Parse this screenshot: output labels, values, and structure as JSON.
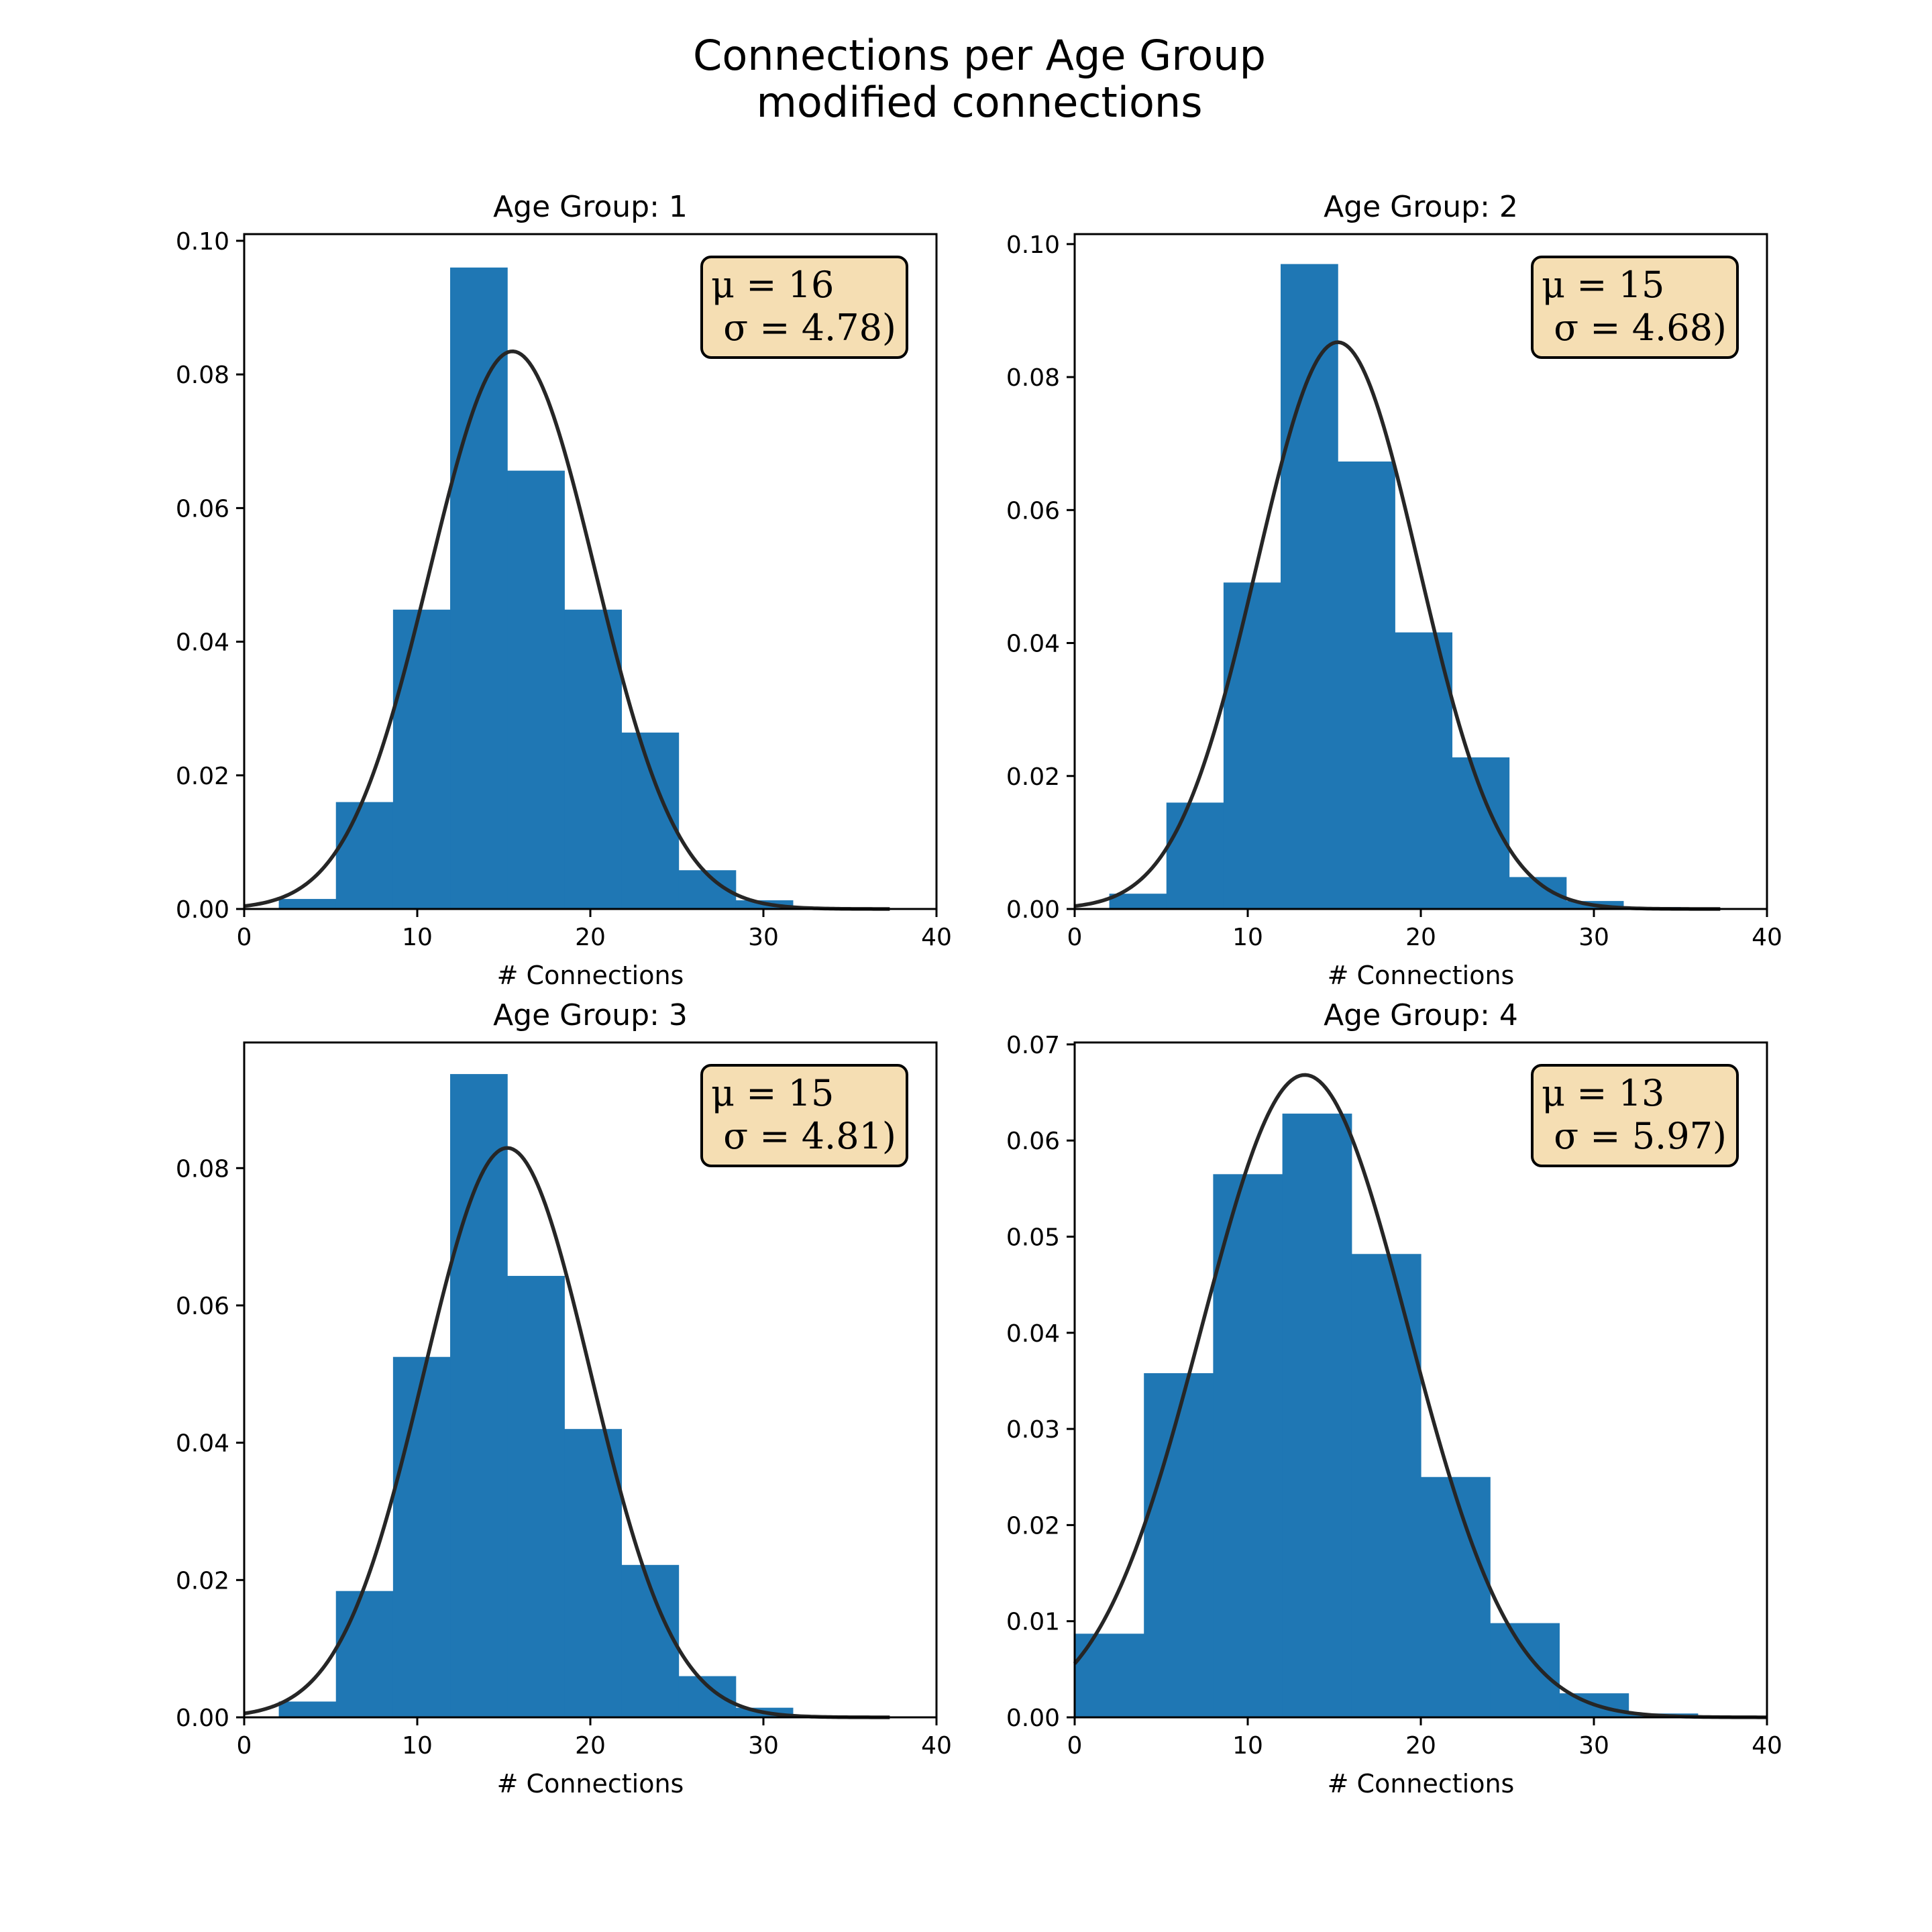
{
  "figure": {
    "title_line1": "Connections per Age Group",
    "title_line2": "modified connections"
  },
  "colors": {
    "bar": "#1f77b4",
    "fit_line": "#262626",
    "stat_box": "#f5deb3"
  },
  "chart_data": [
    {
      "type": "bar",
      "title": "Age Group: 1",
      "xlabel": "# Connections",
      "ylabel": "",
      "xlim": [
        0,
        40
      ],
      "ylim": [
        0,
        0.101
      ],
      "xticks": [
        0,
        10,
        20,
        30,
        40
      ],
      "yticks": [
        0.0,
        0.02,
        0.04,
        0.06,
        0.08,
        0.1
      ],
      "ytick_labels": [
        "0.00",
        "0.02",
        "0.04",
        "0.06",
        "0.08",
        "0.10"
      ],
      "bin_edges": [
        2.0,
        5.3,
        8.6,
        11.9,
        15.2,
        18.5,
        21.8,
        25.1,
        28.4,
        31.7,
        35.0,
        38.3
      ],
      "values": [
        0.0015,
        0.016,
        0.0448,
        0.096,
        0.0656,
        0.0448,
        0.0264,
        0.0058,
        0.0013,
        0.0003,
        0.0001
      ],
      "fit": {
        "mean": 15.5,
        "std": 4.78,
        "x_range": [
          0,
          37.3
        ]
      },
      "stats": {
        "mu_text": "μ = 16",
        "sigma_text": "σ = 4.78)"
      }
    },
    {
      "type": "bar",
      "title": "Age Group: 2",
      "xlabel": "# Connections",
      "ylabel": "",
      "xlim": [
        0,
        40
      ],
      "ylim": [
        0,
        0.1015
      ],
      "xticks": [
        0,
        10,
        20,
        30,
        40
      ],
      "yticks": [
        0.0,
        0.02,
        0.04,
        0.06,
        0.08,
        0.1
      ],
      "ytick_labels": [
        "0.00",
        "0.02",
        "0.04",
        "0.06",
        "0.08",
        "0.10"
      ],
      "bin_edges": [
        2.0,
        5.3,
        8.6,
        11.9,
        15.2,
        18.5,
        21.8,
        25.1,
        28.4,
        31.7,
        35.0,
        38.3
      ],
      "values": [
        0.0023,
        0.016,
        0.0491,
        0.097,
        0.0673,
        0.0416,
        0.0228,
        0.0048,
        0.0012,
        0.0003,
        0.0001
      ],
      "fit": {
        "mean": 15.2,
        "std": 4.68,
        "x_range": [
          0,
          37.3
        ]
      },
      "stats": {
        "mu_text": "μ = 15",
        "sigma_text": "σ = 4.68)"
      }
    },
    {
      "type": "bar",
      "title": "Age Group: 3",
      "xlabel": "# Connections",
      "ylabel": "",
      "xlim": [
        0,
        40
      ],
      "ylim": [
        0,
        0.0983
      ],
      "xticks": [
        0,
        10,
        20,
        30,
        40
      ],
      "yticks": [
        0.0,
        0.02,
        0.04,
        0.06,
        0.08
      ],
      "ytick_labels": [
        "0.00",
        "0.02",
        "0.04",
        "0.06",
        "0.08"
      ],
      "bin_edges": [
        2.0,
        5.3,
        8.6,
        11.9,
        15.2,
        18.5,
        21.8,
        25.1,
        28.4,
        31.7,
        35.0,
        38.3
      ],
      "values": [
        0.0023,
        0.0184,
        0.0525,
        0.0937,
        0.0643,
        0.042,
        0.0222,
        0.006,
        0.0014,
        0.0002,
        0.0001
      ],
      "fit": {
        "mean": 15.2,
        "std": 4.81,
        "x_range": [
          0,
          37.3
        ]
      },
      "stats": {
        "mu_text": "μ = 15",
        "sigma_text": "σ = 4.81)"
      }
    },
    {
      "type": "bar",
      "title": "Age Group: 4",
      "xlabel": "# Connections",
      "ylabel": "",
      "xlim": [
        0,
        40
      ],
      "ylim": [
        0,
        0.0702
      ],
      "xticks": [
        0,
        10,
        20,
        30,
        40
      ],
      "yticks": [
        0.0,
        0.01,
        0.02,
        0.03,
        0.04,
        0.05,
        0.06,
        0.07
      ],
      "ytick_labels": [
        "0.00",
        "0.01",
        "0.02",
        "0.03",
        "0.04",
        "0.05",
        "0.06",
        "0.07"
      ],
      "bin_edges": [
        0.0,
        4.0,
        8.0,
        12.0,
        16.0,
        20.0,
        24.0,
        28.0,
        32.0,
        36.0,
        40.0
      ],
      "values": [
        0.0087,
        0.0358,
        0.0565,
        0.0628,
        0.0482,
        0.025,
        0.0098,
        0.0025,
        0.0004,
        0.0001
      ],
      "fit": {
        "mean": 13.3,
        "std": 5.97,
        "x_range": [
          0,
          40
        ]
      },
      "stats": {
        "mu_text": "μ = 13",
        "sigma_text": "σ = 5.97)"
      }
    }
  ]
}
